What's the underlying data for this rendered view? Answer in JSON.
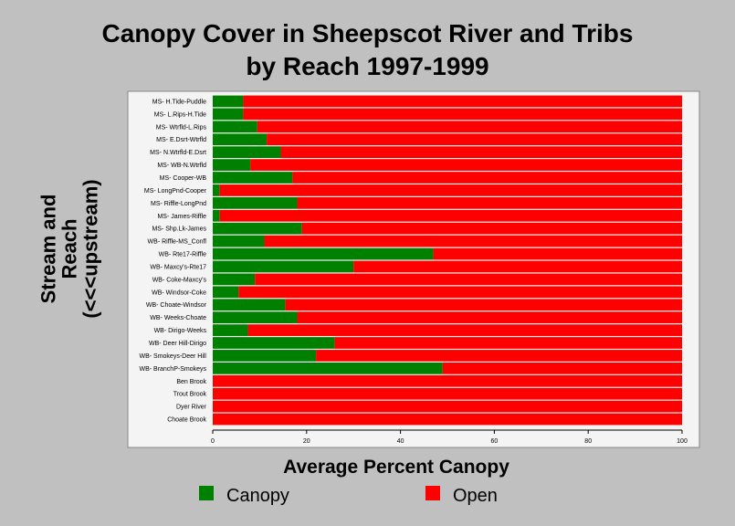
{
  "chart_data": {
    "type": "bar",
    "orientation": "horizontal",
    "stacked": true,
    "title": "Canopy Cover in Sheepscot River and Tribs",
    "subtitle": "by Reach 1997-1999",
    "xlabel": "Average Percent Canopy",
    "ylabel_lines": [
      "Stream and",
      "Reach",
      "(<<<upstream)"
    ],
    "xlim": [
      0,
      100
    ],
    "xticks": [
      "0",
      "20",
      "40",
      "60",
      "80",
      "100"
    ],
    "grid": false,
    "legend_position": "bottom",
    "categories": [
      "MS- H.Tide-Puddle",
      "MS- L.Rips-H.Tide",
      "MS- Wtrfld-L.Rips",
      "MS- E.Dsrt-Wtrfld",
      "MS- N.Wtrfld-E.Dsrt",
      "MS- WB-N.Wtrfld",
      "MS- Cooper-WB",
      "MS- LongPnd-Cooper",
      "MS- Riffle-LongPnd",
      "MS- James-Riffle",
      "MS- Shp.Lk-James",
      "WB- Riffle-MS_Confl",
      "WB- Rte17-Riffle",
      "WB- Maxcy's-Rte17",
      "WB- Coke-Maxcy's",
      "WB- Windsor-Coke",
      "WB- Choate-Windsor",
      "WB- Weeks-Choate",
      "WB- Dirigo-Weeks",
      "WB- Deer Hill-Dirigo",
      "WB- Smokeys-Deer Hill",
      "WB- BranchP-Smokeys",
      "Ben Brook",
      "Trout Brook",
      "Dyer River",
      "Choate Brook"
    ],
    "series": [
      {
        "name": "Canopy",
        "color": "#008000",
        "values": [
          6.5,
          6.5,
          9.5,
          11.5,
          14.5,
          8,
          17,
          1.5,
          18,
          1.5,
          19,
          11,
          47,
          30,
          9,
          5.5,
          15.5,
          18,
          7.5,
          26,
          22,
          49,
          0,
          0,
          0,
          0
        ]
      },
      {
        "name": "Open",
        "color": "#ff0000",
        "values": [
          93.5,
          93.5,
          90.5,
          88.5,
          85.5,
          92,
          83,
          98.5,
          82,
          98.5,
          81,
          89,
          53,
          70,
          91,
          94.5,
          84.5,
          82,
          92.5,
          74,
          78,
          51,
          100,
          100,
          100,
          100
        ]
      }
    ]
  }
}
